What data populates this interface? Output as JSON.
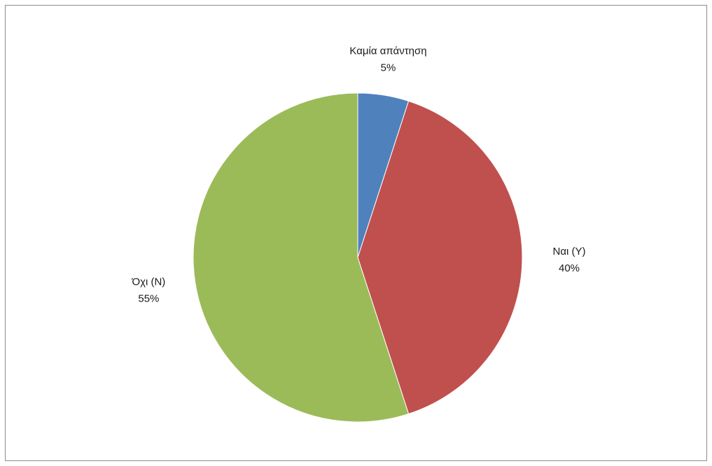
{
  "chart_data": {
    "type": "pie",
    "title": "",
    "start_angle_deg": 0,
    "direction": "clockwise",
    "slices": [
      {
        "name": "Καμία απάντηση",
        "value": 5,
        "value_label": "5%",
        "color": "#4f81bd"
      },
      {
        "name": "Ναι (Y)",
        "value": 40,
        "value_label": "40%",
        "color": "#c0504d"
      },
      {
        "name": "Όχι (N)",
        "value": 55,
        "value_label": "55%",
        "color": "#9bbb59"
      }
    ],
    "legend": "none",
    "data_labels": "outside-end"
  }
}
